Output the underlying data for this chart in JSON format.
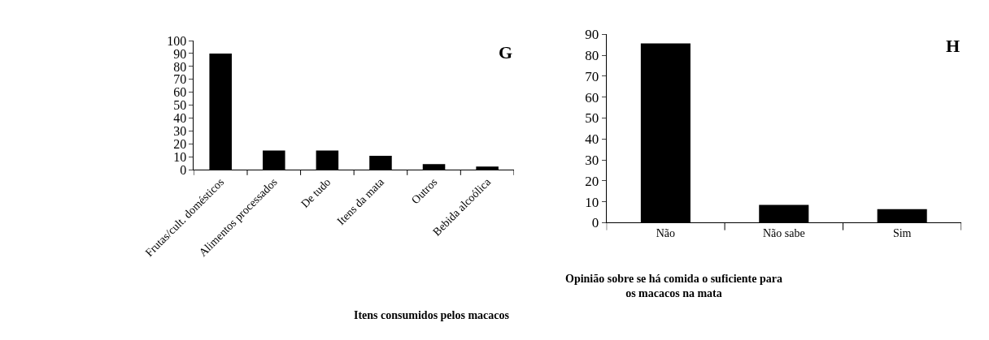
{
  "chart_data": [
    {
      "type": "bar",
      "xlabel": "Itens consumidos pelos macacos",
      "annotations": [
        "G"
      ],
      "categories": [
        "Frutas/cult. domésticos",
        "Alimentos processados",
        "De tudo",
        "Itens da mata",
        "Outros",
        "Bebida alcoólica"
      ],
      "values": [
        90,
        15,
        15,
        11,
        4.6,
        2.6
      ],
      "color": "#000000",
      "ylim": [
        0,
        100
      ],
      "yticks": [
        0,
        10,
        20,
        30,
        40,
        50,
        60,
        70,
        80,
        90,
        100
      ]
    },
    {
      "type": "bar",
      "xlabel": "Opinião sobre se há comida o suficiente para os macacos na mata",
      "annotations": [
        "H"
      ],
      "categories": [
        "Não",
        "Não sabe",
        "Sim"
      ],
      "values": [
        85.7,
        8.5,
        6.5
      ],
      "color": "#000000",
      "ylim": [
        0,
        90
      ],
      "yticks": [
        0,
        10,
        20,
        30,
        40,
        50,
        60,
        70,
        80,
        90
      ]
    }
  ]
}
